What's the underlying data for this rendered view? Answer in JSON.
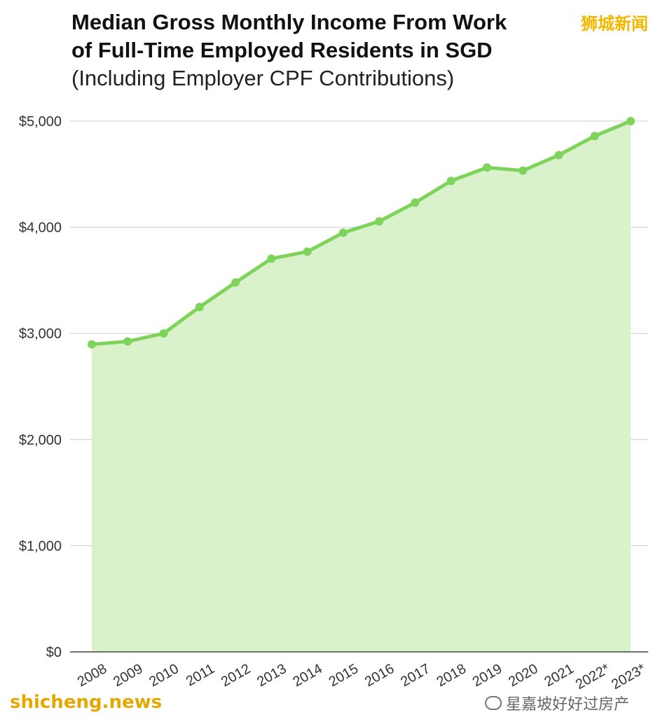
{
  "title": {
    "line1": "Median Gross Monthly Income From Work",
    "line2": "of Full-Time Employed Residents in SGD",
    "line3": "(Including Employer CPF Contributions)"
  },
  "badge": "狮城新闻",
  "footer": {
    "left": "shicheng.news",
    "right": "星嘉坡好好过房产"
  },
  "colors": {
    "line": "#7ed35b",
    "fill": "#d9f2cc",
    "grid": "#cccccc",
    "axis": "#444444"
  },
  "chart_data": {
    "type": "area",
    "categories": [
      "2008",
      "2009",
      "2010",
      "2011",
      "2012",
      "2013",
      "2014",
      "2015",
      "2016",
      "2017",
      "2018",
      "2019",
      "2020",
      "2021",
      "2022*",
      "2023*"
    ],
    "series": [
      {
        "values": [
          2897,
          2925,
          3000,
          3249,
          3480,
          3705,
          3770,
          3949,
          4056,
          4232,
          4437,
          4563,
          4534,
          4680,
          4860,
          5000
        ]
      }
    ],
    "ylim": [
      0,
      5000
    ],
    "yticks": [
      0,
      1000,
      2000,
      3000,
      4000,
      5000
    ],
    "ytick_labels": [
      "$0",
      "$1,000",
      "$2,000",
      "$3,000",
      "$4,000",
      "$5,000"
    ],
    "grid": true,
    "markers": true
  }
}
